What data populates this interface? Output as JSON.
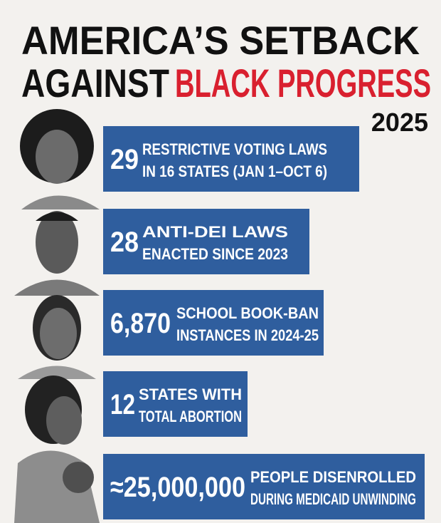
{
  "title": {
    "line1": "AMERICA’S SETBACK",
    "line2": [
      "AGAINST",
      "BLACK PROGRESS"
    ]
  },
  "year": "2025",
  "items": [
    {
      "number": "29",
      "lines": [
        "RESTRICTIVE VOTING LAWS",
        "IN 16 STATES (JAN 1–OCT 6)"
      ]
    },
    {
      "number": "28",
      "lines": [
        "ANTI-DEI LAWS",
        "ENACTED SINCE 2023"
      ]
    },
    {
      "number": "6,870",
      "lines": [
        "SCHOOL BOOK-BAN",
        "INSTANCES IN 2024-25"
      ]
    },
    {
      "number": "12",
      "lines": [
        "STATES WITH",
        "TOTAL ABORTION"
      ]
    },
    {
      "number": "≈25,000,000",
      "lines": [
        "PEOPLE DISENROLLED",
        "DURING MEDICAID UNWINDING"
      ]
    }
  ]
}
